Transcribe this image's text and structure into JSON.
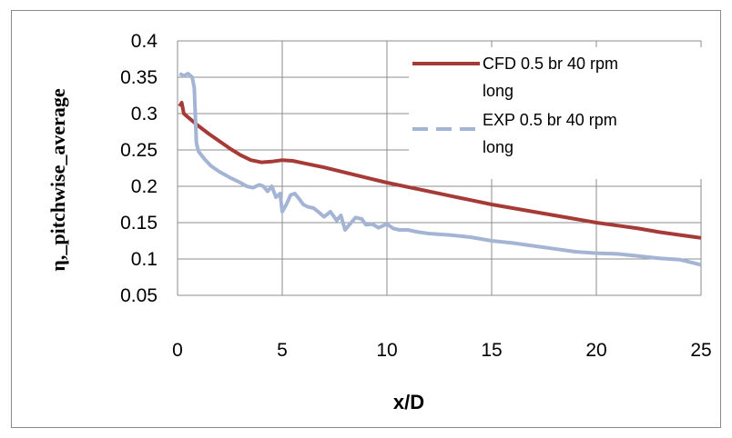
{
  "chart_data": {
    "type": "line",
    "xlabel": "x/D",
    "ylabel": "η,_pitchwise_average",
    "xlim": [
      0,
      25
    ],
    "ylim": [
      0.05,
      0.4
    ],
    "xticks": [
      0,
      5,
      10,
      15,
      20,
      25
    ],
    "yticks": [
      0.05,
      0.1,
      0.15,
      0.2,
      0.25,
      0.3,
      0.35,
      0.4
    ],
    "grid": true,
    "legend_position": "top-right",
    "series": [
      {
        "name": "CFD 0.5 br 40 rpm long",
        "color": "#a63a36",
        "style": "solid",
        "x": [
          0.1,
          0.2,
          0.3,
          0.5,
          1,
          1.5,
          2,
          2.5,
          3,
          3.5,
          4,
          4.5,
          5,
          5.5,
          6,
          7,
          8,
          9,
          10,
          11,
          12,
          13,
          14,
          15,
          16,
          17,
          18,
          19,
          20,
          21,
          22,
          23,
          24,
          25
        ],
        "y": [
          0.31,
          0.315,
          0.3,
          0.295,
          0.283,
          0.272,
          0.262,
          0.252,
          0.243,
          0.236,
          0.233,
          0.234,
          0.236,
          0.235,
          0.232,
          0.226,
          0.219,
          0.212,
          0.205,
          0.199,
          0.193,
          0.187,
          0.181,
          0.175,
          0.17,
          0.165,
          0.16,
          0.155,
          0.15,
          0.146,
          0.142,
          0.137,
          0.133,
          0.129
        ]
      },
      {
        "name": "EXP 0.5 br 40 rpm long",
        "color": "#a3b4d4",
        "style": "dashed",
        "x": [
          0.1,
          0.3,
          0.5,
          0.7,
          0.8,
          0.9,
          1,
          1.3,
          1.6,
          2,
          2.5,
          3,
          3.3,
          3.6,
          3.9,
          4.1,
          4.3,
          4.5,
          4.7,
          4.9,
          5,
          5.2,
          5.4,
          5.6,
          5.8,
          6,
          6.2,
          6.5,
          6.8,
          7,
          7.3,
          7.6,
          7.8,
          8,
          8.2,
          8.5,
          8.8,
          9,
          9.3,
          9.6,
          10,
          10.3,
          10.6,
          11,
          11.5,
          12,
          13,
          14,
          15,
          16,
          17,
          18,
          19,
          20,
          21,
          22,
          23,
          24,
          25
        ],
        "y": [
          0.355,
          0.352,
          0.355,
          0.35,
          0.335,
          0.26,
          0.248,
          0.237,
          0.228,
          0.22,
          0.212,
          0.205,
          0.2,
          0.198,
          0.202,
          0.2,
          0.193,
          0.2,
          0.185,
          0.19,
          0.165,
          0.175,
          0.188,
          0.19,
          0.183,
          0.175,
          0.172,
          0.17,
          0.163,
          0.158,
          0.165,
          0.153,
          0.16,
          0.14,
          0.147,
          0.157,
          0.155,
          0.147,
          0.148,
          0.143,
          0.148,
          0.142,
          0.14,
          0.14,
          0.137,
          0.135,
          0.133,
          0.13,
          0.125,
          0.122,
          0.118,
          0.114,
          0.11,
          0.108,
          0.107,
          0.104,
          0.101,
          0.099,
          0.092
        ]
      }
    ]
  }
}
